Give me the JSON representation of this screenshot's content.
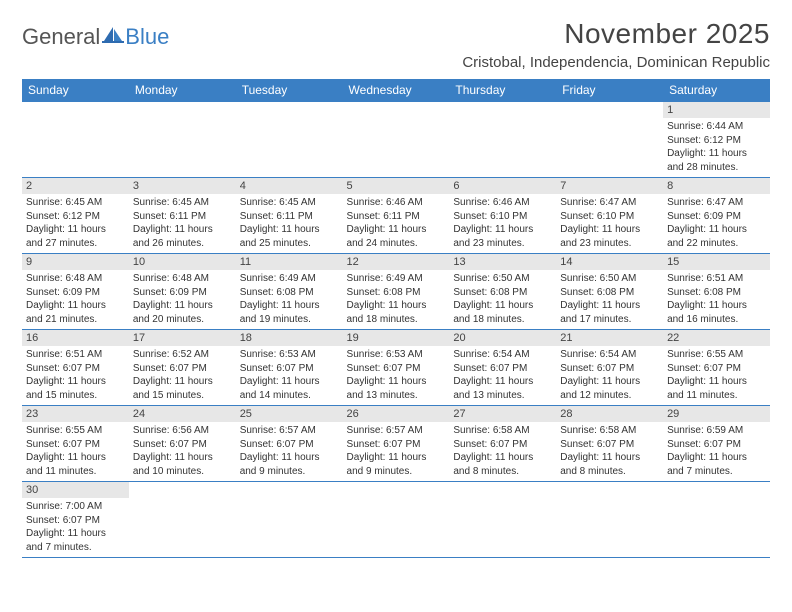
{
  "brand": {
    "part1": "General",
    "part2": "Blue"
  },
  "title": "November 2025",
  "location": "Cristobal, Independencia, Dominican Republic",
  "colors": {
    "header_bg": "#3a7fc4",
    "header_text": "#ffffff",
    "daynum_bg": "#e7e7e7",
    "border": "#3a7fc4",
    "text": "#333333",
    "background": "#ffffff"
  },
  "calendar": {
    "daynames_fontsize": 12,
    "cell_fontsize": 10,
    "title_fontsize": 28,
    "location_fontsize": 15,
    "days": [
      "Sunday",
      "Monday",
      "Tuesday",
      "Wednesday",
      "Thursday",
      "Friday",
      "Saturday"
    ],
    "weeks": [
      [
        null,
        null,
        null,
        null,
        null,
        null,
        {
          "n": "1",
          "sr": "Sunrise: 6:44 AM",
          "ss": "Sunset: 6:12 PM",
          "dl": "Daylight: 11 hours and 28 minutes."
        }
      ],
      [
        {
          "n": "2",
          "sr": "Sunrise: 6:45 AM",
          "ss": "Sunset: 6:12 PM",
          "dl": "Daylight: 11 hours and 27 minutes."
        },
        {
          "n": "3",
          "sr": "Sunrise: 6:45 AM",
          "ss": "Sunset: 6:11 PM",
          "dl": "Daylight: 11 hours and 26 minutes."
        },
        {
          "n": "4",
          "sr": "Sunrise: 6:45 AM",
          "ss": "Sunset: 6:11 PM",
          "dl": "Daylight: 11 hours and 25 minutes."
        },
        {
          "n": "5",
          "sr": "Sunrise: 6:46 AM",
          "ss": "Sunset: 6:11 PM",
          "dl": "Daylight: 11 hours and 24 minutes."
        },
        {
          "n": "6",
          "sr": "Sunrise: 6:46 AM",
          "ss": "Sunset: 6:10 PM",
          "dl": "Daylight: 11 hours and 23 minutes."
        },
        {
          "n": "7",
          "sr": "Sunrise: 6:47 AM",
          "ss": "Sunset: 6:10 PM",
          "dl": "Daylight: 11 hours and 23 minutes."
        },
        {
          "n": "8",
          "sr": "Sunrise: 6:47 AM",
          "ss": "Sunset: 6:09 PM",
          "dl": "Daylight: 11 hours and 22 minutes."
        }
      ],
      [
        {
          "n": "9",
          "sr": "Sunrise: 6:48 AM",
          "ss": "Sunset: 6:09 PM",
          "dl": "Daylight: 11 hours and 21 minutes."
        },
        {
          "n": "10",
          "sr": "Sunrise: 6:48 AM",
          "ss": "Sunset: 6:09 PM",
          "dl": "Daylight: 11 hours and 20 minutes."
        },
        {
          "n": "11",
          "sr": "Sunrise: 6:49 AM",
          "ss": "Sunset: 6:08 PM",
          "dl": "Daylight: 11 hours and 19 minutes."
        },
        {
          "n": "12",
          "sr": "Sunrise: 6:49 AM",
          "ss": "Sunset: 6:08 PM",
          "dl": "Daylight: 11 hours and 18 minutes."
        },
        {
          "n": "13",
          "sr": "Sunrise: 6:50 AM",
          "ss": "Sunset: 6:08 PM",
          "dl": "Daylight: 11 hours and 18 minutes."
        },
        {
          "n": "14",
          "sr": "Sunrise: 6:50 AM",
          "ss": "Sunset: 6:08 PM",
          "dl": "Daylight: 11 hours and 17 minutes."
        },
        {
          "n": "15",
          "sr": "Sunrise: 6:51 AM",
          "ss": "Sunset: 6:08 PM",
          "dl": "Daylight: 11 hours and 16 minutes."
        }
      ],
      [
        {
          "n": "16",
          "sr": "Sunrise: 6:51 AM",
          "ss": "Sunset: 6:07 PM",
          "dl": "Daylight: 11 hours and 15 minutes."
        },
        {
          "n": "17",
          "sr": "Sunrise: 6:52 AM",
          "ss": "Sunset: 6:07 PM",
          "dl": "Daylight: 11 hours and 15 minutes."
        },
        {
          "n": "18",
          "sr": "Sunrise: 6:53 AM",
          "ss": "Sunset: 6:07 PM",
          "dl": "Daylight: 11 hours and 14 minutes."
        },
        {
          "n": "19",
          "sr": "Sunrise: 6:53 AM",
          "ss": "Sunset: 6:07 PM",
          "dl": "Daylight: 11 hours and 13 minutes."
        },
        {
          "n": "20",
          "sr": "Sunrise: 6:54 AM",
          "ss": "Sunset: 6:07 PM",
          "dl": "Daylight: 11 hours and 13 minutes."
        },
        {
          "n": "21",
          "sr": "Sunrise: 6:54 AM",
          "ss": "Sunset: 6:07 PM",
          "dl": "Daylight: 11 hours and 12 minutes."
        },
        {
          "n": "22",
          "sr": "Sunrise: 6:55 AM",
          "ss": "Sunset: 6:07 PM",
          "dl": "Daylight: 11 hours and 11 minutes."
        }
      ],
      [
        {
          "n": "23",
          "sr": "Sunrise: 6:55 AM",
          "ss": "Sunset: 6:07 PM",
          "dl": "Daylight: 11 hours and 11 minutes."
        },
        {
          "n": "24",
          "sr": "Sunrise: 6:56 AM",
          "ss": "Sunset: 6:07 PM",
          "dl": "Daylight: 11 hours and 10 minutes."
        },
        {
          "n": "25",
          "sr": "Sunrise: 6:57 AM",
          "ss": "Sunset: 6:07 PM",
          "dl": "Daylight: 11 hours and 9 minutes."
        },
        {
          "n": "26",
          "sr": "Sunrise: 6:57 AM",
          "ss": "Sunset: 6:07 PM",
          "dl": "Daylight: 11 hours and 9 minutes."
        },
        {
          "n": "27",
          "sr": "Sunrise: 6:58 AM",
          "ss": "Sunset: 6:07 PM",
          "dl": "Daylight: 11 hours and 8 minutes."
        },
        {
          "n": "28",
          "sr": "Sunrise: 6:58 AM",
          "ss": "Sunset: 6:07 PM",
          "dl": "Daylight: 11 hours and 8 minutes."
        },
        {
          "n": "29",
          "sr": "Sunrise: 6:59 AM",
          "ss": "Sunset: 6:07 PM",
          "dl": "Daylight: 11 hours and 7 minutes."
        }
      ],
      [
        {
          "n": "30",
          "sr": "Sunrise: 7:00 AM",
          "ss": "Sunset: 6:07 PM",
          "dl": "Daylight: 11 hours and 7 minutes."
        },
        null,
        null,
        null,
        null,
        null,
        null
      ]
    ]
  }
}
